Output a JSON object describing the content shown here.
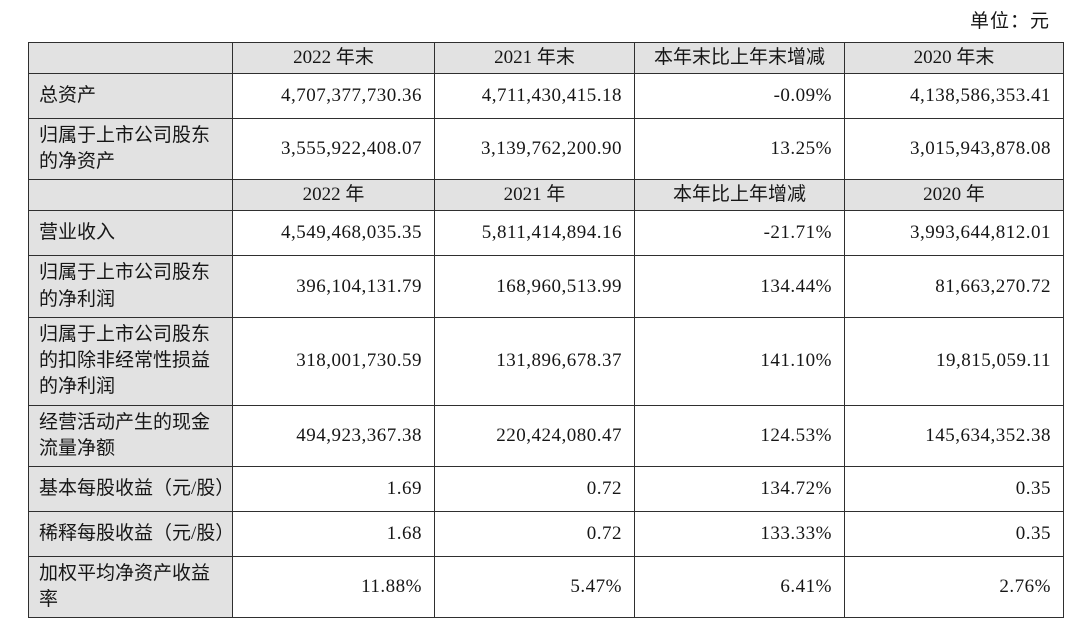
{
  "page": {
    "unit_label": "单位：元"
  },
  "colors": {
    "header_bg": "#e2e2e2",
    "border": "#2f2f2f",
    "text": "#161616",
    "page_bg": "#ffffff"
  },
  "table": {
    "sections": [
      {
        "header": {
          "label_cell": "",
          "cols": [
            "2022 年末",
            "2021 年末",
            "本年末比上年末增减",
            "2020 年末"
          ]
        },
        "rows": [
          {
            "label": "总资产",
            "values": [
              "4,707,377,730.36",
              "4,711,430,415.18",
              "-0.09%",
              "4,138,586,353.41"
            ]
          },
          {
            "label": "归属于上市公司股东的净资产",
            "values": [
              "3,555,922,408.07",
              "3,139,762,200.90",
              "13.25%",
              "3,015,943,878.08"
            ]
          }
        ]
      },
      {
        "header": {
          "label_cell": "",
          "cols": [
            "2022 年",
            "2021 年",
            "本年比上年增减",
            "2020 年"
          ]
        },
        "rows": [
          {
            "label": "营业收入",
            "values": [
              "4,549,468,035.35",
              "5,811,414,894.16",
              "-21.71%",
              "3,993,644,812.01"
            ]
          },
          {
            "label": "归属于上市公司股东的净利润",
            "values": [
              "396,104,131.79",
              "168,960,513.99",
              "134.44%",
              "81,663,270.72"
            ]
          },
          {
            "label": "归属于上市公司股东的扣除非经常性损益的净利润",
            "values": [
              "318,001,730.59",
              "131,896,678.37",
              "141.10%",
              "19,815,059.11"
            ]
          },
          {
            "label": "经营活动产生的现金流量净额",
            "values": [
              "494,923,367.38",
              "220,424,080.47",
              "124.53%",
              "145,634,352.38"
            ]
          },
          {
            "label": "基本每股收益（元/股）",
            "values": [
              "1.69",
              "0.72",
              "134.72%",
              "0.35"
            ]
          },
          {
            "label": "稀释每股收益（元/股）",
            "values": [
              "1.68",
              "0.72",
              "133.33%",
              "0.35"
            ]
          },
          {
            "label": "加权平均净资产收益率",
            "values": [
              "11.88%",
              "5.47%",
              "6.41%",
              "2.76%"
            ]
          }
        ]
      }
    ]
  }
}
